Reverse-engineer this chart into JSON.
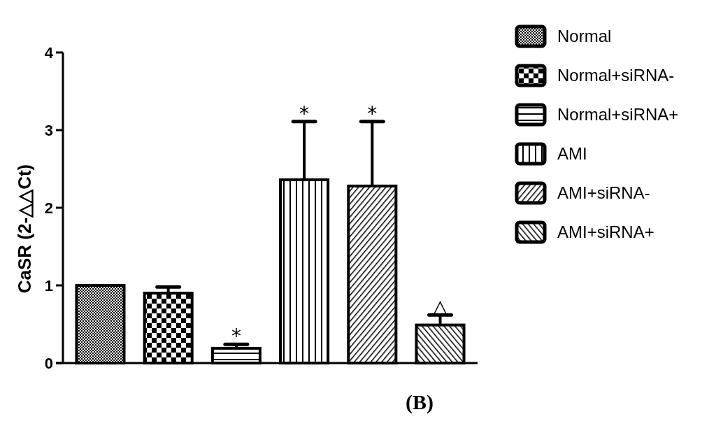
{
  "chart_data": {
    "type": "bar",
    "ylabel": "CaSR (2-△△Ct)",
    "categories": [
      null,
      null,
      null,
      null,
      null,
      null
    ],
    "ylim": [
      0,
      4
    ],
    "yticks": [
      0,
      1,
      2,
      3,
      4
    ],
    "grid": false,
    "legend": "right",
    "tick_labels": "y",
    "annotations": [
      "(B)"
    ],
    "series": [
      {
        "name": "Normal",
        "color": "#000000",
        "values": [
          1.0,
          null,
          null,
          null,
          null,
          null
        ]
      },
      {
        "name": "Normal+siRNA-",
        "color": "#000000",
        "values": [
          null,
          0.9,
          null,
          null,
          null,
          null
        ],
        "errors": [
          null,
          0.08,
          null,
          null,
          null,
          null
        ]
      },
      {
        "name": "Normal+siRNA+",
        "color": "#000000",
        "values": [
          null,
          null,
          0.19,
          null,
          null,
          null
        ],
        "errors": [
          null,
          null,
          0.05,
          null,
          null,
          null
        ],
        "value_labels": [
          null,
          null,
          "*",
          null,
          null,
          null
        ]
      },
      {
        "name": "AMI",
        "color": "#000000",
        "values": [
          null,
          null,
          null,
          2.36,
          null,
          null
        ],
        "errors": [
          null,
          null,
          null,
          0.75,
          null,
          null
        ],
        "value_labels": [
          null,
          null,
          null,
          "*",
          null,
          null
        ]
      },
      {
        "name": "AMI+siRNA-",
        "color": "#000000",
        "values": [
          null,
          null,
          null,
          null,
          2.28,
          null
        ],
        "errors": [
          null,
          null,
          null,
          null,
          0.83,
          null
        ],
        "value_labels": [
          null,
          null,
          null,
          null,
          "*",
          null
        ]
      },
      {
        "name": "AMI+siRNA+",
        "color": "#000000",
        "values": [
          null,
          null,
          null,
          null,
          null,
          0.49
        ],
        "errors": [
          null,
          null,
          null,
          null,
          null,
          0.13
        ],
        "value_labels": [
          null,
          null,
          null,
          null,
          null,
          "△"
        ]
      }
    ]
  }
}
